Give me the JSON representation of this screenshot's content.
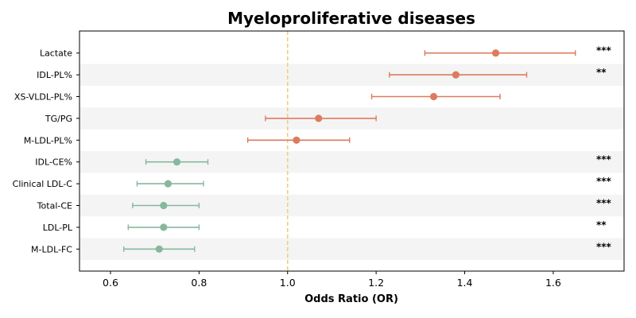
{
  "chart_data": {
    "type": "scatter",
    "subtype": "forest-plot",
    "title": "Myeloproliferative diseases",
    "xlabel": "Odds Ratio (OR)",
    "ylabel": "",
    "xlim": [
      0.53,
      1.76
    ],
    "xticks": [
      0.6,
      0.8,
      1.0,
      1.2,
      1.4,
      1.6
    ],
    "xtick_labels": [
      "0.6",
      "0.8",
      "1.0",
      "1.2",
      "1.4",
      "1.6"
    ],
    "reference_line": 1.0,
    "grid": false,
    "alternating_row_shading": true,
    "colors": {
      "increased": "#dd7b5e",
      "decreased": "#86b89e",
      "reference": "#f5cb83",
      "row_shade": "#f4f4f4"
    },
    "rows": [
      {
        "label": "Lactate",
        "or": 1.47,
        "ci_low": 1.31,
        "ci_high": 1.65,
        "sig": "***"
      },
      {
        "label": "IDL-PL%",
        "or": 1.38,
        "ci_low": 1.23,
        "ci_high": 1.54,
        "sig": "**"
      },
      {
        "label": "XS-VLDL-PL%",
        "or": 1.33,
        "ci_low": 1.19,
        "ci_high": 1.48,
        "sig": ""
      },
      {
        "label": "TG/PG",
        "or": 1.07,
        "ci_low": 0.95,
        "ci_high": 1.2,
        "sig": ""
      },
      {
        "label": "M-LDL-PL%",
        "or": 1.02,
        "ci_low": 0.91,
        "ci_high": 1.14,
        "sig": ""
      },
      {
        "label": "IDL-CE%",
        "or": 0.75,
        "ci_low": 0.68,
        "ci_high": 0.82,
        "sig": "***"
      },
      {
        "label": "Clinical LDL-C",
        "or": 0.73,
        "ci_low": 0.66,
        "ci_high": 0.81,
        "sig": "***"
      },
      {
        "label": "Total-CE",
        "or": 0.72,
        "ci_low": 0.65,
        "ci_high": 0.8,
        "sig": "***"
      },
      {
        "label": "LDL-PL",
        "or": 0.72,
        "ci_low": 0.64,
        "ci_high": 0.8,
        "sig": "**"
      },
      {
        "label": "M-LDL-FC",
        "or": 0.71,
        "ci_low": 0.63,
        "ci_high": 0.79,
        "sig": "***"
      }
    ]
  }
}
